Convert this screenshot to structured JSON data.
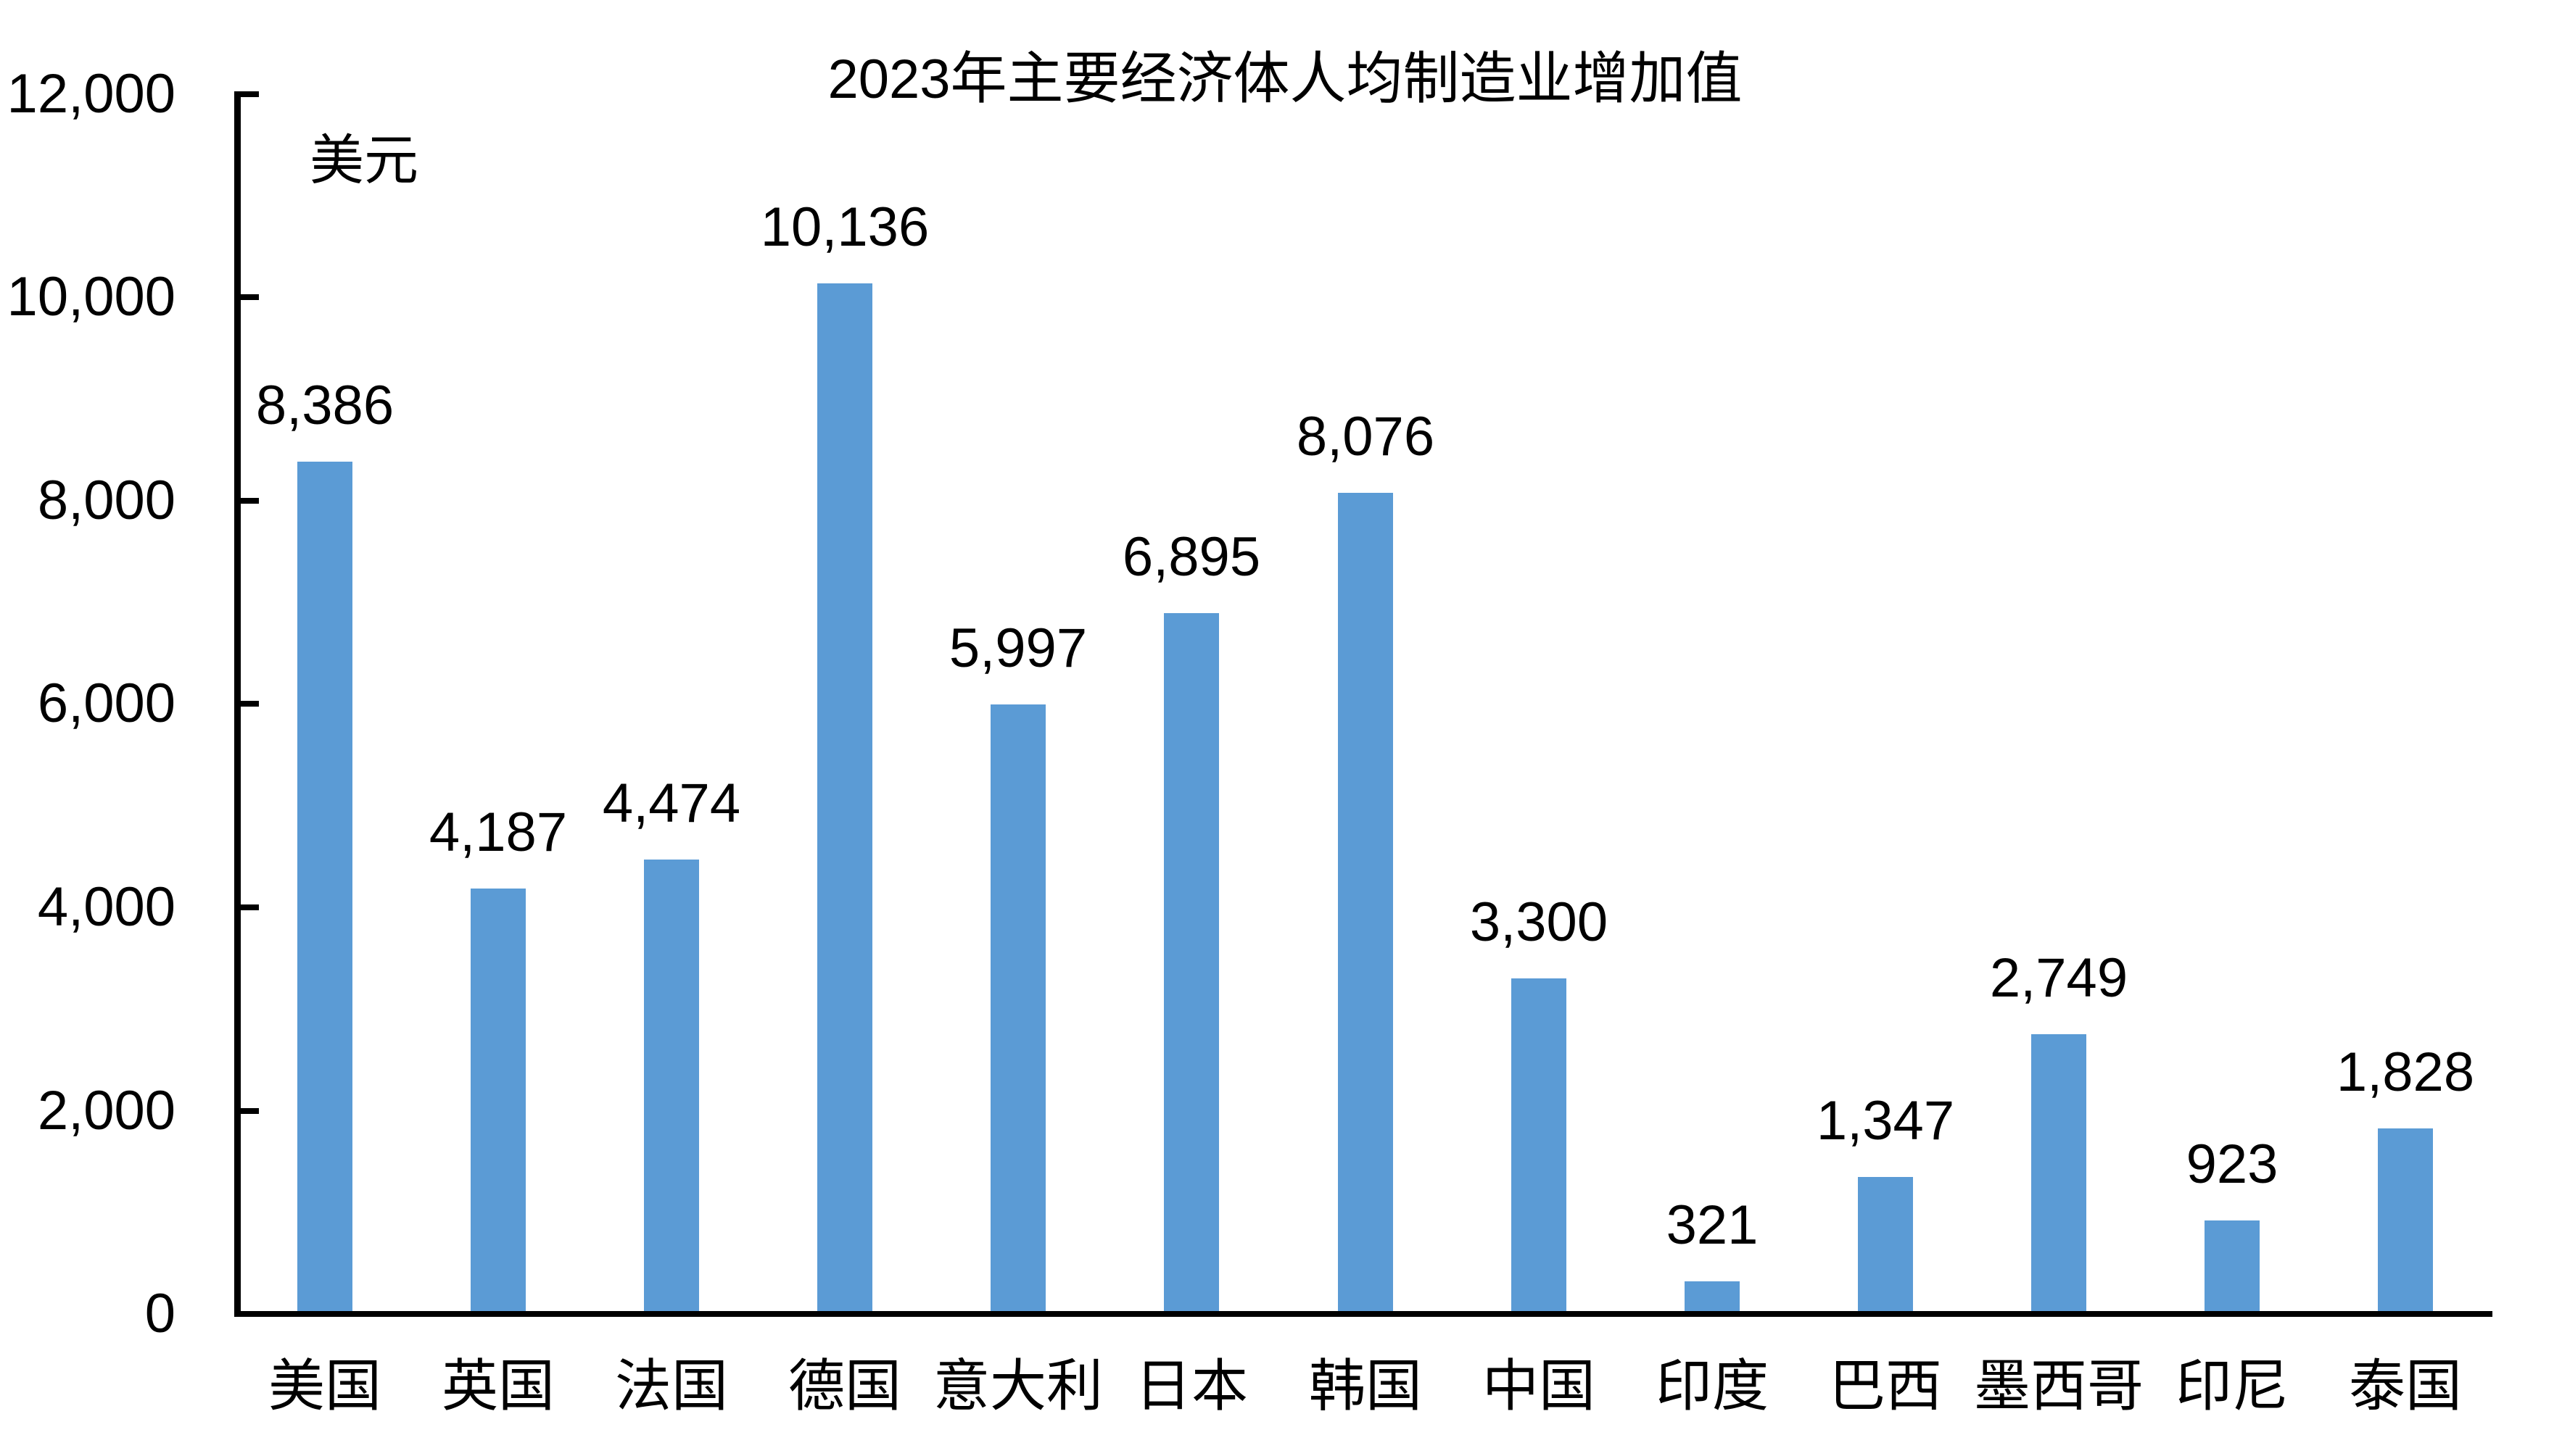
{
  "chart_data": {
    "type": "bar",
    "title": "2023年主要经济体人均制造业增加值",
    "title_year": "2023",
    "title_text": "年主要经济体人均制造业增加值",
    "unit_label": "美元",
    "categories": [
      "美国",
      "英国",
      "法国",
      "德国",
      "意大利",
      "日本",
      "韩国",
      "中国",
      "印度",
      "巴西",
      "墨西哥",
      "印尼",
      "泰国"
    ],
    "values": [
      8386,
      4187,
      4474,
      10136,
      5997,
      6895,
      8076,
      3300,
      321,
      1347,
      2749,
      923,
      1828
    ],
    "data_labels": [
      "8,386",
      "4,187",
      "4,474",
      "10,136",
      "5,997",
      "6,895",
      "8,076",
      "3,300",
      "321",
      "1,347",
      "2,749",
      "923",
      "1,828"
    ],
    "xlabel": "",
    "ylabel": "美元",
    "ylim": [
      0,
      12000
    ],
    "ytick_step": 2000,
    "ytick_labels": [
      "0",
      "2,000",
      "4,000",
      "6,000",
      "8,000",
      "10,000",
      "12,000"
    ],
    "grid": false,
    "legend": "none",
    "bar_color": "#5B9BD5",
    "axis_color": "#000000",
    "text_color": "#000000",
    "background_color": "#FFFFFF"
  }
}
